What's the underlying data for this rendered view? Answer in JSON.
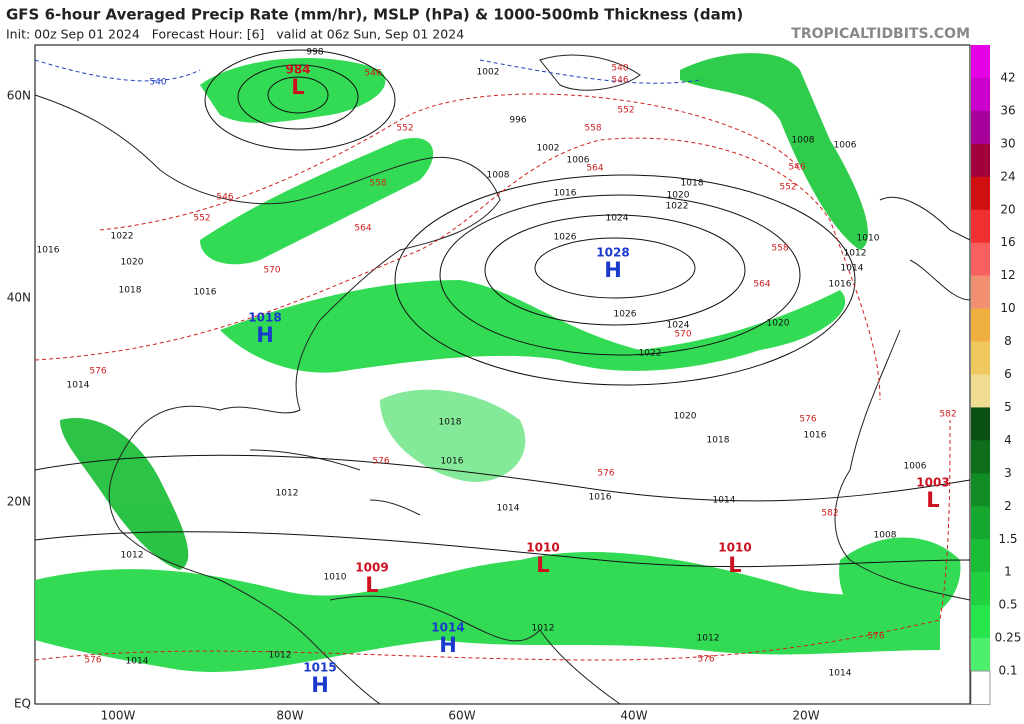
{
  "header": {
    "title": "GFS 6-hour Averaged Precip Rate (mm/hr), MSLP (hPa) & 1000-500mb Thickness (dam)",
    "subtitle": "Init: 00z Sep 01 2024   Forecast Hour: [6]   valid at 06z Sun, Sep 01 2024",
    "site": "TROPICALTIDBITS.COM"
  },
  "lat_labels": [
    "60N",
    "40N",
    "20N",
    "EQ"
  ],
  "lon_labels": [
    "100W",
    "80W",
    "60W",
    "40W",
    "20W"
  ],
  "colorbar": {
    "labels": [
      "42",
      "36",
      "30",
      "24",
      "20",
      "16",
      "12",
      "10",
      "8",
      "6",
      "5",
      "4",
      "3",
      "2",
      "1.5",
      "1",
      "0.5",
      "0.25",
      "0.1"
    ],
    "colors": [
      "#e600e6",
      "#cc00cc",
      "#a8009a",
      "#a0003c",
      "#d01010",
      "#f03030",
      "#f86060",
      "#f09070",
      "#f0b040",
      "#f0c860",
      "#f0dc90",
      "#0a5014",
      "#0e6e1c",
      "#128c24",
      "#16a82e",
      "#1abe36",
      "#20d240",
      "#28e44c",
      "#4cf06c",
      "#ffffff"
    ]
  },
  "pressure_centers": [
    {
      "letter": "L",
      "value": "984"
    },
    {
      "letter": "H",
      "value": "1018"
    },
    {
      "letter": "H",
      "value": "1028"
    },
    {
      "letter": "L",
      "value": "1009"
    },
    {
      "letter": "L",
      "value": "1010"
    },
    {
      "letter": "L",
      "value": "1010"
    },
    {
      "letter": "L",
      "value": "1003"
    },
    {
      "letter": "H",
      "value": "1014"
    },
    {
      "letter": "H",
      "value": "1015"
    }
  ],
  "contour_labels": [
    {
      "text": "1002",
      "kind": "mslp"
    },
    {
      "text": "998",
      "kind": "mslp"
    },
    {
      "text": "996",
      "kind": "mslp"
    },
    {
      "text": "1002",
      "kind": "mslp"
    },
    {
      "text": "1006",
      "kind": "mslp"
    },
    {
      "text": "1008",
      "kind": "mslp"
    },
    {
      "text": "1016",
      "kind": "mslp"
    },
    {
      "text": "1018",
      "kind": "mslp"
    },
    {
      "text": "1020",
      "kind": "mslp"
    },
    {
      "text": "1022",
      "kind": "mslp"
    },
    {
      "text": "1024",
      "kind": "mslp"
    },
    {
      "text": "1026",
      "kind": "mslp"
    },
    {
      "text": "1026",
      "kind": "mslp"
    },
    {
      "text": "1024",
      "kind": "mslp"
    },
    {
      "text": "1022",
      "kind": "mslp"
    },
    {
      "text": "1020",
      "kind": "mslp"
    },
    {
      "text": "1016",
      "kind": "mslp"
    },
    {
      "text": "1014",
      "kind": "mslp"
    },
    {
      "text": "1012",
      "kind": "mslp"
    },
    {
      "text": "1010",
      "kind": "mslp"
    },
    {
      "text": "1008",
      "kind": "mslp"
    },
    {
      "text": "1006",
      "kind": "mslp"
    },
    {
      "text": "1018",
      "kind": "mslp"
    },
    {
      "text": "1016",
      "kind": "mslp"
    },
    {
      "text": "1022",
      "kind": "mslp"
    },
    {
      "text": "1020",
      "kind": "mslp"
    },
    {
      "text": "1016",
      "kind": "mslp"
    },
    {
      "text": "1014",
      "kind": "mslp"
    },
    {
      "text": "1018",
      "kind": "mslp"
    },
    {
      "text": "1016",
      "kind": "mslp"
    },
    {
      "text": "1020",
      "kind": "mslp"
    },
    {
      "text": "1018",
      "kind": "mslp"
    },
    {
      "text": "1016",
      "kind": "mslp"
    },
    {
      "text": "1016",
      "kind": "mslp"
    },
    {
      "text": "1014",
      "kind": "mslp"
    },
    {
      "text": "1014",
      "kind": "mslp"
    },
    {
      "text": "1012",
      "kind": "mslp"
    },
    {
      "text": "1014",
      "kind": "mslp"
    },
    {
      "text": "1014",
      "kind": "mslp"
    },
    {
      "text": "1012",
      "kind": "mslp"
    },
    {
      "text": "1010",
      "kind": "mslp"
    },
    {
      "text": "1012",
      "kind": "mslp"
    },
    {
      "text": "1012",
      "kind": "mslp"
    },
    {
      "text": "1012",
      "kind": "mslp"
    },
    {
      "text": "1006",
      "kind": "mslp"
    },
    {
      "text": "1008",
      "kind": "mslp"
    },
    {
      "text": "546",
      "kind": "thickness"
    },
    {
      "text": "552",
      "kind": "thickness"
    },
    {
      "text": "558",
      "kind": "thickness"
    },
    {
      "text": "564",
      "kind": "thickness"
    },
    {
      "text": "558",
      "kind": "thickness"
    },
    {
      "text": "564",
      "kind": "thickness"
    },
    {
      "text": "570",
      "kind": "thickness"
    },
    {
      "text": "552",
      "kind": "thickness"
    },
    {
      "text": "546",
      "kind": "thickness"
    },
    {
      "text": "570",
      "kind": "thickness"
    },
    {
      "text": "564",
      "kind": "thickness"
    },
    {
      "text": "558",
      "kind": "thickness"
    },
    {
      "text": "552",
      "kind": "thickness"
    },
    {
      "text": "546",
      "kind": "thickness"
    },
    {
      "text": "576",
      "kind": "thickness"
    },
    {
      "text": "576",
      "kind": "thickness"
    },
    {
      "text": "576",
      "kind": "thickness"
    },
    {
      "text": "576",
      "kind": "thickness"
    },
    {
      "text": "582",
      "kind": "thickness"
    },
    {
      "text": "582",
      "kind": "thickness"
    },
    {
      "text": "576",
      "kind": "thickness"
    },
    {
      "text": "576",
      "kind": "thickness"
    },
    {
      "text": "576",
      "kind": "thickness"
    },
    {
      "text": "540",
      "kind": "thickness_cold"
    },
    {
      "text": "552",
      "kind": "thickness"
    },
    {
      "text": "540",
      "kind": "thickness"
    },
    {
      "text": "546",
      "kind": "thickness"
    }
  ]
}
